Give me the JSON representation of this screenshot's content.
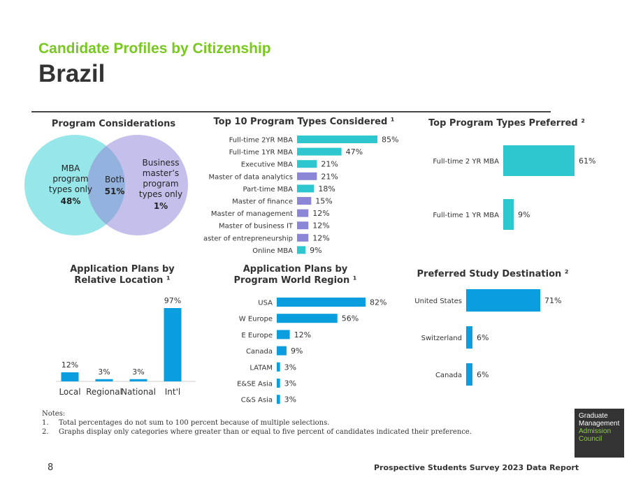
{
  "header": {
    "kicker": "Candidate Profiles by Citizenship",
    "title": "Brazil"
  },
  "colors": {
    "accent_green": "#78c81e",
    "teal_bar": "#2ec7cf",
    "purple_bar": "#8b86d6",
    "blue_bar": "#0a9ede",
    "venn_left": "#97e6e9",
    "venn_right": "#c4c0eb",
    "venn_overlap": "#94b2de"
  },
  "venn": {
    "title": "Program Considerations",
    "left_label": "MBA program types only",
    "left_value": "48%",
    "both_label": "Both",
    "both_value": "51%",
    "right_label": "Business master’s program types only",
    "right_value": "1%"
  },
  "chart_data": [
    {
      "id": "top10",
      "type": "bar",
      "orientation": "horizontal",
      "title": "Top 10 Program Types Considered ¹",
      "categories": [
        "Full-time 2YR MBA",
        "Full-time 1YR MBA",
        "Executive MBA",
        "Master of data analytics",
        "Part-time MBA",
        "Master of finance",
        "Master of management",
        "Master of business IT",
        "Master of entrepreneurship",
        "Online MBA"
      ],
      "values": [
        85,
        47,
        21,
        21,
        18,
        15,
        12,
        12,
        12,
        9
      ],
      "labels": [
        "85%",
        "47%",
        "21%",
        "21%",
        "18%",
        "15%",
        "12%",
        "12%",
        "12%",
        "9%"
      ],
      "bar_colors": [
        "#2ec7cf",
        "#2ec7cf",
        "#2ec7cf",
        "#8b86d6",
        "#2ec7cf",
        "#8b86d6",
        "#8b86d6",
        "#8b86d6",
        "#8b86d6",
        "#2ec7cf"
      ],
      "xlim": [
        0,
        85
      ]
    },
    {
      "id": "preferred",
      "type": "bar",
      "orientation": "horizontal",
      "title": "Top Program Types Preferred ²",
      "categories": [
        "Full-time 2 YR MBA",
        "Full-time 1 YR MBA"
      ],
      "values": [
        61,
        9
      ],
      "labels": [
        "61%",
        "9%"
      ],
      "bar_colors": [
        "#2ec7cf",
        "#2ec7cf"
      ],
      "xlim": [
        0,
        61
      ]
    },
    {
      "id": "relative",
      "type": "bar",
      "orientation": "vertical",
      "title": "Application Plans by Relative Location ¹",
      "categories": [
        "Local",
        "Regional",
        "National",
        "Int'l"
      ],
      "values": [
        12,
        3,
        3,
        97
      ],
      "labels": [
        "12%",
        "3%",
        "3%",
        "97%"
      ],
      "bar_colors": [
        "#0a9ede",
        "#0a9ede",
        "#0a9ede",
        "#0a9ede"
      ],
      "ylim": [
        0,
        97
      ]
    },
    {
      "id": "world",
      "type": "bar",
      "orientation": "horizontal",
      "title": "Application Plans by Program World Region ¹",
      "categories": [
        "USA",
        "W Europe",
        "E Europe",
        "Canada",
        "LATAM",
        "E&SE Asia",
        "C&S Asia"
      ],
      "values": [
        82,
        56,
        12,
        9,
        3,
        3,
        3
      ],
      "labels": [
        "82%",
        "56%",
        "12%",
        "9%",
        "3%",
        "3%",
        "3%"
      ],
      "bar_colors": [
        "#0a9ede",
        "#0a9ede",
        "#0a9ede",
        "#0a9ede",
        "#0a9ede",
        "#0a9ede",
        "#0a9ede"
      ],
      "xlim": [
        0,
        82
      ]
    },
    {
      "id": "destination",
      "type": "bar",
      "orientation": "horizontal",
      "title": "Preferred Study Destination ²",
      "categories": [
        "United States",
        "Switzerland",
        "Canada"
      ],
      "values": [
        71,
        6,
        6
      ],
      "labels": [
        "71%",
        "6%",
        "6%"
      ],
      "bar_colors": [
        "#0a9ede",
        "#0a9ede",
        "#0a9ede"
      ],
      "xlim": [
        0,
        71
      ]
    }
  ],
  "notes": {
    "heading": "Notes:",
    "items": [
      "Total percentages do not sum to 100 percent because of multiple selections.",
      "Graphs display only categories where greater than or equal to five percent of candidates indicated their preference."
    ]
  },
  "footer": {
    "page_number": "8",
    "report": "Prospective Students Survey 2023 Data Report"
  },
  "logo": {
    "line1": "Graduate",
    "line2": "Management",
    "line3": "Admission",
    "line4": "Council"
  }
}
